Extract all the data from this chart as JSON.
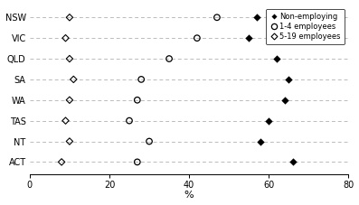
{
  "states": [
    "NSW",
    "VIC",
    "QLD",
    "SA",
    "WA",
    "TAS",
    "NT",
    "ACT"
  ],
  "non_employing": [
    57,
    55,
    62,
    65,
    64,
    60,
    58,
    66
  ],
  "emp_1_4": [
    47,
    42,
    35,
    28,
    27,
    25,
    30,
    27
  ],
  "emp_5_19": [
    10,
    9,
    10,
    11,
    10,
    9,
    10,
    8
  ],
  "xlim": [
    0,
    80
  ],
  "xticks": [
    0,
    20,
    40,
    60,
    80
  ],
  "xlabel": "%",
  "bg_color": "#ffffff",
  "grid_color": "#bbbbbb",
  "legend_labels": [
    "Non-employing",
    "1-4 employees",
    "5-19 employees"
  ]
}
